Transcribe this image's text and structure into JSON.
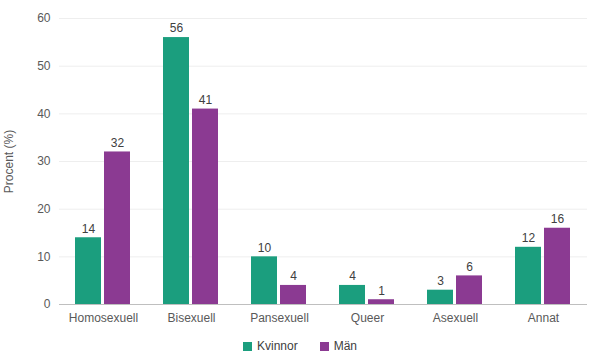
{
  "chart_data": {
    "type": "bar",
    "ylabel": "Procent (%)",
    "categories": [
      "Homosexuell",
      "Bisexuell",
      "Pansexuell",
      "Queer",
      "Asexuell",
      "Annat"
    ],
    "series": [
      {
        "name": "Kvinnor",
        "color": "#1b9e7e",
        "values": [
          14,
          56,
          10,
          4,
          3,
          12
        ]
      },
      {
        "name": "Män",
        "color": "#8b3a92",
        "values": [
          32,
          41,
          4,
          1,
          6,
          16
        ]
      }
    ],
    "ylim": [
      0,
      60
    ],
    "yticks": [
      0,
      10,
      20,
      30,
      40,
      50,
      60
    ],
    "grid": true,
    "data_labels": true,
    "legend": "bottom"
  }
}
